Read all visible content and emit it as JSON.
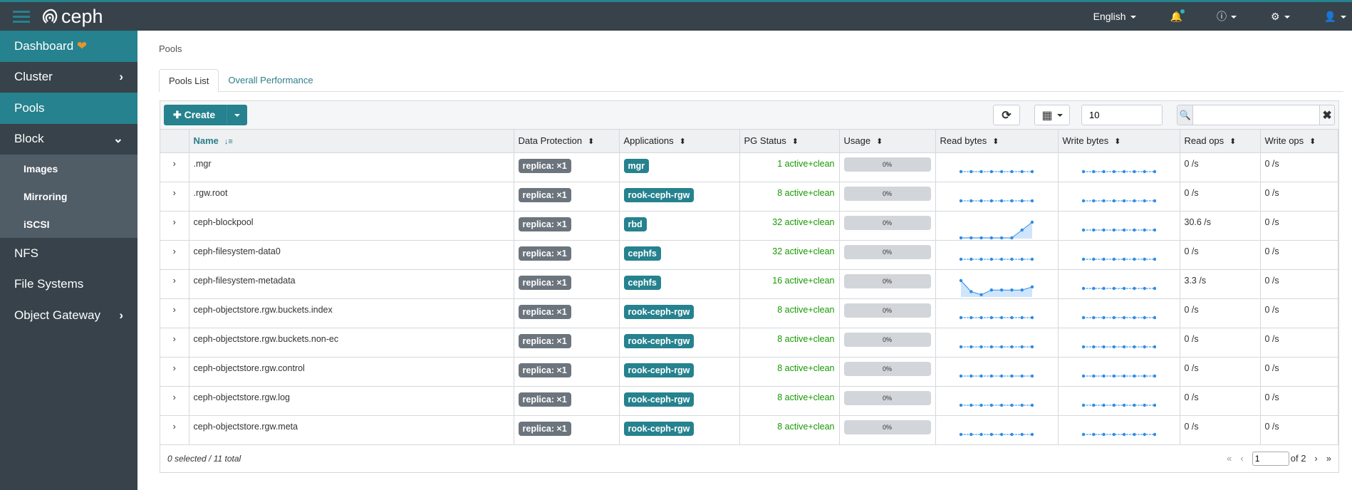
{
  "app": {
    "brand": "ceph",
    "accent": "#25828e",
    "topbar_color": "#37424a"
  },
  "topnav": {
    "language": "English",
    "icons": [
      "bell-icon",
      "help-icon",
      "gear-icon",
      "user-icon"
    ]
  },
  "sidebar": {
    "items": [
      {
        "label": "Dashboard",
        "active": true
      },
      {
        "label": "Cluster",
        "chevron": "right"
      },
      {
        "label": "Pools",
        "active": true
      },
      {
        "label": "Block",
        "chevron": "down"
      },
      {
        "label": "Images",
        "sub": true
      },
      {
        "label": "Mirroring",
        "sub": true
      },
      {
        "label": "iSCSI",
        "sub": true
      },
      {
        "label": "NFS"
      },
      {
        "label": "File Systems"
      },
      {
        "label": "Object Gateway",
        "chevron": "right"
      }
    ]
  },
  "breadcrumb": "Pools",
  "tabs": [
    {
      "label": "Pools List",
      "active": true
    },
    {
      "label": "Overall Performance"
    }
  ],
  "toolbar": {
    "create_label": "Create",
    "page_size": "10",
    "search_value": ""
  },
  "columns": [
    "Name",
    "Data Protection",
    "Applications",
    "PG Status",
    "Usage",
    "Read bytes",
    "Write bytes",
    "Read ops",
    "Write ops"
  ],
  "rows": [
    {
      "name": ".mgr",
      "protection": "replica: ×1",
      "app": "mgr",
      "pg": "1 active+clean",
      "usage": "0%",
      "read_bytes": [
        0,
        0,
        0,
        0,
        0,
        0,
        0,
        0
      ],
      "write_bytes": [
        0,
        0,
        0,
        0,
        0,
        0,
        0,
        0
      ],
      "read_ops": "0 /s",
      "write_ops": "0 /s"
    },
    {
      "name": ".rgw.root",
      "protection": "replica: ×1",
      "app": "rook-ceph-rgw",
      "pg": "8 active+clean",
      "usage": "0%",
      "read_bytes": [
        0,
        0,
        0,
        0,
        0,
        0,
        0,
        0
      ],
      "write_bytes": [
        0,
        0,
        0,
        0,
        0,
        0,
        0,
        0
      ],
      "read_ops": "0 /s",
      "write_ops": "0 /s"
    },
    {
      "name": "ceph-blockpool",
      "protection": "replica: ×1",
      "app": "rbd",
      "pg": "32 active+clean",
      "usage": "0%",
      "read_bytes": [
        0,
        0,
        0,
        0,
        0,
        0,
        0.5,
        1
      ],
      "write_bytes": [
        0,
        0,
        0,
        0,
        0,
        0,
        0,
        0
      ],
      "read_ops": "30.6 /s",
      "write_ops": "0 /s"
    },
    {
      "name": "ceph-filesystem-data0",
      "protection": "replica: ×1",
      "app": "cephfs",
      "pg": "32 active+clean",
      "usage": "0%",
      "read_bytes": [
        0,
        0,
        0,
        0,
        0,
        0,
        0,
        0
      ],
      "write_bytes": [
        0,
        0,
        0,
        0,
        0,
        0,
        0,
        0
      ],
      "read_ops": "0 /s",
      "write_ops": "0 /s"
    },
    {
      "name": "ceph-filesystem-metadata",
      "protection": "replica: ×1",
      "app": "cephfs",
      "pg": "16 active+clean",
      "usage": "0%",
      "read_bytes": [
        1,
        0.3,
        0.1,
        0.4,
        0.4,
        0.4,
        0.4,
        0.6
      ],
      "write_bytes": [
        0,
        0,
        0,
        0,
        0,
        0,
        0,
        0
      ],
      "read_ops": "3.3 /s",
      "write_ops": "0 /s"
    },
    {
      "name": "ceph-objectstore.rgw.buckets.index",
      "protection": "replica: ×1",
      "app": "rook-ceph-rgw",
      "pg": "8 active+clean",
      "usage": "0%",
      "read_bytes": [
        0,
        0,
        0,
        0,
        0,
        0,
        0,
        0
      ],
      "write_bytes": [
        0,
        0,
        0,
        0,
        0,
        0,
        0,
        0
      ],
      "read_ops": "0 /s",
      "write_ops": "0 /s"
    },
    {
      "name": "ceph-objectstore.rgw.buckets.non-ec",
      "protection": "replica: ×1",
      "app": "rook-ceph-rgw",
      "pg": "8 active+clean",
      "usage": "0%",
      "read_bytes": [
        0,
        0,
        0,
        0,
        0,
        0,
        0,
        0
      ],
      "write_bytes": [
        0,
        0,
        0,
        0,
        0,
        0,
        0,
        0
      ],
      "read_ops": "0 /s",
      "write_ops": "0 /s"
    },
    {
      "name": "ceph-objectstore.rgw.control",
      "protection": "replica: ×1",
      "app": "rook-ceph-rgw",
      "pg": "8 active+clean",
      "usage": "0%",
      "read_bytes": [
        0,
        0,
        0,
        0,
        0,
        0,
        0,
        0
      ],
      "write_bytes": [
        0,
        0,
        0,
        0,
        0,
        0,
        0,
        0
      ],
      "read_ops": "0 /s",
      "write_ops": "0 /s"
    },
    {
      "name": "ceph-objectstore.rgw.log",
      "protection": "replica: ×1",
      "app": "rook-ceph-rgw",
      "pg": "8 active+clean",
      "usage": "0%",
      "read_bytes": [
        0,
        0,
        0,
        0,
        0,
        0,
        0,
        0
      ],
      "write_bytes": [
        0,
        0,
        0,
        0,
        0,
        0,
        0,
        0
      ],
      "read_ops": "0 /s",
      "write_ops": "0 /s"
    },
    {
      "name": "ceph-objectstore.rgw.meta",
      "protection": "replica: ×1",
      "app": "rook-ceph-rgw",
      "pg": "8 active+clean",
      "usage": "0%",
      "read_bytes": [
        0,
        0,
        0,
        0,
        0,
        0,
        0,
        0
      ],
      "write_bytes": [
        0,
        0,
        0,
        0,
        0,
        0,
        0,
        0
      ],
      "read_ops": "0 /s",
      "write_ops": "0 /s"
    }
  ],
  "footer": {
    "summary": "0 selected / 11 total",
    "page": "1",
    "of_pages": "of 2"
  }
}
